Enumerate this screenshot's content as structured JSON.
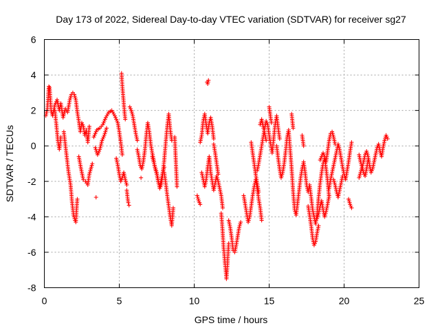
{
  "chart_data": {
    "type": "scatter",
    "title": "Day 173 of 2022, Sidereal Day-to-day VTEC variation (SDTVAR) for receiver sg27",
    "xlabel": "GPS time / hours",
    "ylabel": "SDTVAR / TECUs",
    "xlim": [
      0,
      25
    ],
    "ylim": [
      -8,
      6
    ],
    "xticks": [
      0,
      5,
      10,
      15,
      20,
      25
    ],
    "yticks": [
      -8,
      -6,
      -4,
      -2,
      0,
      2,
      4,
      6
    ],
    "grid": true,
    "marker": "+",
    "series": [
      {
        "name": "SDTVAR",
        "color": "#ff0000",
        "segments": [
          {
            "x": [
              0.1,
              0.2,
              0.3,
              0.35,
              0.45,
              0.55,
              0.7,
              0.85,
              1.0,
              1.1,
              1.25,
              1.4,
              1.55,
              1.7,
              1.8,
              1.9,
              2.0,
              2.1,
              2.2,
              2.3,
              2.4,
              2.5,
              2.6,
              2.7,
              2.8,
              2.9,
              3.0
            ],
            "y": [
              1.7,
              2.1,
              3.35,
              3.3,
              2.0,
              1.7,
              2.3,
              2.6,
              2.0,
              2.4,
              1.6,
              2.1,
              1.9,
              2.6,
              2.9,
              3.0,
              2.9,
              2.6,
              1.9,
              1.4,
              0.8,
              1.3,
              1.1,
              0.6,
              0.9,
              0.2,
              1.1
            ]
          },
          {
            "x": [
              0.7,
              0.8,
              0.9,
              1.0,
              1.1
            ],
            "y": [
              2.0,
              1.2,
              0.3,
              -0.2,
              0.5
            ]
          },
          {
            "x": [
              1.3,
              1.45,
              1.6,
              1.75,
              1.85,
              1.95,
              2.05,
              2.1,
              2.15,
              2.2
            ],
            "y": [
              0.8,
              -0.3,
              -1.4,
              -2.2,
              -3.2,
              -3.9,
              -4.2,
              -4.3,
              -3.6,
              -3.0
            ]
          },
          {
            "x": [
              2.3,
              2.45,
              2.6,
              2.75,
              2.9,
              3.0,
              3.1,
              3.2
            ],
            "y": [
              -0.6,
              -1.3,
              -1.9,
              -2.0,
              -2.2,
              -1.6,
              -1.3,
              -1.0
            ]
          },
          {
            "x": [
              3.3,
              3.5,
              3.7,
              3.9,
              4.1,
              4.3,
              4.5,
              4.7,
              4.9,
              5.0,
              5.1,
              5.2
            ],
            "y": [
              0.5,
              0.9,
              1.0,
              1.2,
              1.6,
              1.9,
              2.0,
              1.7,
              1.3,
              0.8,
              0.2,
              -0.5
            ]
          },
          {
            "x": [
              3.4,
              3.55,
              3.7,
              3.85,
              4.0,
              4.15
            ],
            "y": [
              -0.1,
              -0.5,
              -0.2,
              0.3,
              0.6,
              1.0
            ]
          },
          {
            "x": [
              3.45
            ],
            "y": [
              -2.9
            ]
          },
          {
            "x": [
              5.15,
              5.2,
              5.25,
              5.3,
              5.35,
              5.4
            ],
            "y": [
              4.1,
              3.4,
              2.9,
              2.4,
              1.9,
              1.5
            ]
          },
          {
            "x": [
              4.8,
              4.9,
              5.0,
              5.1,
              5.2,
              5.3,
              5.4,
              5.5
            ],
            "y": [
              -0.7,
              -1.1,
              -1.6,
              -2.0,
              -1.8,
              -1.5,
              -1.9,
              -2.2
            ]
          },
          {
            "x": [
              5.5,
              5.55,
              5.6,
              5.65
            ],
            "y": [
              -2.5,
              -2.9,
              -3.2,
              -3.35
            ]
          },
          {
            "x": [
              5.7,
              5.8,
              5.9,
              6.0,
              6.1,
              6.2
            ],
            "y": [
              2.2,
              2.0,
              1.7,
              1.2,
              0.7,
              0.3
            ]
          },
          {
            "x": [
              6.2,
              6.3,
              6.4,
              6.5,
              6.6,
              6.7,
              6.8,
              6.9,
              7.0,
              7.1,
              7.2,
              7.3,
              7.4,
              7.5,
              7.6,
              7.7,
              7.8,
              7.9,
              8.0
            ],
            "y": [
              -0.2,
              -0.6,
              -1.1,
              -1.3,
              -0.9,
              -0.3,
              0.6,
              1.3,
              0.8,
              0.1,
              -0.4,
              -0.8,
              -1.3,
              -1.6,
              -2.0,
              -2.3,
              -1.9,
              -1.5,
              -1.2
            ]
          },
          {
            "x": [
              6.45
            ],
            "y": [
              -1.8
            ]
          },
          {
            "x": [
              7.2,
              7.35,
              7.5,
              7.6,
              7.7,
              7.8,
              7.9,
              8.0,
              8.1,
              8.2,
              8.3,
              8.4,
              8.5
            ],
            "y": [
              -0.6,
              -1.1,
              -1.5,
              -2.0,
              -2.4,
              -2.2,
              -1.6,
              -0.8,
              0.2,
              1.1,
              1.8,
              0.9,
              0.3
            ]
          },
          {
            "x": [
              8.0,
              8.1,
              8.2,
              8.3,
              8.4,
              8.5,
              8.6
            ],
            "y": [
              -1.5,
              -2.1,
              -2.8,
              -3.4,
              -4.0,
              -4.5,
              -3.5
            ]
          },
          {
            "x": [
              8.7,
              8.85
            ],
            "y": [
              0.5,
              -2.3
            ]
          },
          {
            "x": [
              10.2,
              10.3,
              10.4
            ],
            "y": [
              -2.8,
              -3.1,
              -3.3
            ]
          },
          {
            "x": [
              10.4,
              10.5,
              10.6,
              10.7,
              10.8,
              10.9,
              11.0,
              11.1,
              11.2,
              11.3
            ],
            "y": [
              0.2,
              0.6,
              1.4,
              1.8,
              1.2,
              0.7,
              1.3,
              1.6,
              1.1,
              0.4
            ]
          },
          {
            "x": [
              10.85,
              10.9,
              10.95
            ],
            "y": [
              3.6,
              3.5,
              3.7
            ]
          },
          {
            "x": [
              10.5,
              10.6,
              10.7,
              10.8,
              10.9,
              11.0,
              11.1,
              11.2,
              11.3,
              11.4,
              11.5,
              11.6,
              11.7,
              11.8,
              11.9
            ],
            "y": [
              -1.5,
              -1.9,
              -2.3,
              -1.9,
              -1.2,
              -0.6,
              -1.5,
              -2.0,
              -2.5,
              -2.1,
              -1.7,
              -2.0,
              -2.4,
              -2.8,
              -3.5
            ]
          },
          {
            "x": [
              11.3,
              11.4,
              11.5,
              11.6
            ],
            "y": [
              0.1,
              -0.4,
              -1.0,
              -1.6
            ]
          },
          {
            "x": [
              11.8,
              11.85,
              11.9,
              11.95,
              12.0,
              12.05,
              12.1,
              12.15,
              12.2,
              12.25,
              12.3
            ],
            "y": [
              -3.8,
              -4.3,
              -4.9,
              -5.6,
              -6.1,
              -6.6,
              -7.0,
              -7.5,
              -6.9,
              -6.2,
              -5.5
            ]
          },
          {
            "x": [
              12.3,
              12.4,
              12.5,
              12.6,
              12.7,
              12.8,
              12.9,
              13.0,
              13.1
            ],
            "y": [
              -4.2,
              -4.6,
              -5.2,
              -5.9,
              -6.0,
              -5.6,
              -5.1,
              -4.6,
              -4.3
            ]
          },
          {
            "x": [
              13.3,
              13.4,
              13.5,
              13.6,
              13.7,
              13.8,
              13.9,
              14.0,
              14.1,
              14.2,
              14.3,
              14.4,
              14.5
            ],
            "y": [
              -2.8,
              -3.3,
              -3.8,
              -4.3,
              -4.0,
              -3.4,
              -2.8,
              -2.3,
              -1.9,
              -2.4,
              -3.0,
              -3.5,
              -4.2
            ]
          },
          {
            "x": [
              13.8,
              13.9,
              14.0,
              14.1,
              14.2,
              14.3
            ],
            "y": [
              0.2,
              -0.4,
              -1.0,
              -1.6,
              -2.1,
              -2.6
            ]
          },
          {
            "x": [
              14.2,
              14.3,
              14.4,
              14.5,
              14.6,
              14.7,
              14.8,
              14.9,
              15.0,
              15.1,
              15.2,
              15.3,
              15.4,
              15.5,
              15.6,
              15.7
            ],
            "y": [
              -1.4,
              -1.0,
              -0.5,
              0.0,
              0.5,
              1.0,
              1.4,
              1.2,
              0.6,
              0.1,
              -0.4,
              0.4,
              1.2,
              1.7,
              1.0,
              0.4
            ]
          },
          {
            "x": [
              14.4,
              14.5,
              14.6,
              14.7,
              14.8
            ],
            "y": [
              1.2,
              1.5,
              1.1,
              0.7,
              0.3
            ]
          },
          {
            "x": [
              15.0,
              15.05,
              15.1,
              15.15
            ],
            "y": [
              2.2,
              1.9,
              1.6,
              1.3
            ]
          },
          {
            "x": [
              15.5,
              15.6,
              15.7,
              15.8,
              15.9,
              16.0,
              16.1,
              16.2,
              16.3,
              16.4,
              16.5,
              16.6,
              16.7,
              16.8,
              16.9,
              17.0,
              17.1,
              17.2,
              17.3,
              17.4,
              17.5,
              17.6,
              17.7,
              17.8,
              17.9,
              18.0,
              18.1,
              18.2,
              18.3,
              18.4,
              18.5,
              18.6,
              18.7,
              18.8,
              18.9,
              19.0
            ],
            "y": [
              0.0,
              -0.7,
              -1.3,
              -1.8,
              -1.5,
              -1.0,
              -0.3,
              0.5,
              0.9,
              -0.2,
              -1.3,
              -2.6,
              -3.6,
              -3.9,
              -3.2,
              -2.5,
              -1.8,
              -1.3,
              -0.9,
              -1.5,
              -2.2,
              -2.6,
              -2.2,
              -2.9,
              -3.6,
              -4.0,
              -4.4,
              -3.8,
              -2.9,
              -2.1,
              -1.5,
              -1.0,
              -0.7,
              -1.3,
              -2.0,
              -2.9
            ]
          },
          {
            "x": [
              16.5,
              16.55,
              16.6
            ],
            "y": [
              1.8,
              1.4,
              1.0
            ]
          },
          {
            "x": [
              17.2,
              17.25,
              17.3
            ],
            "y": [
              0.6,
              0.3,
              0.0
            ]
          },
          {
            "x": [
              17.6,
              17.7,
              17.8,
              17.9,
              18.0,
              18.1,
              18.2,
              18.3
            ],
            "y": [
              -3.4,
              -3.9,
              -4.5,
              -5.2,
              -5.6,
              -5.4,
              -4.9,
              -4.5
            ]
          },
          {
            "x": [
              18.2,
              18.3,
              18.4,
              18.5,
              18.6,
              18.7,
              18.8,
              18.9,
              19.0
            ],
            "y": [
              -4.1,
              -3.8,
              -3.4,
              -3.1,
              -3.6,
              -4.0,
              -3.7,
              -3.3,
              -2.8
            ]
          },
          {
            "x": [
              18.4,
              18.5,
              18.6,
              18.7,
              18.8,
              18.9,
              19.0,
              19.1,
              19.2,
              19.3,
              19.4
            ],
            "y": [
              -0.8,
              -0.6,
              -0.4,
              -0.6,
              -0.9,
              -0.3,
              0.3,
              0.7,
              0.8,
              0.5,
              0.1
            ]
          },
          {
            "x": [
              19.0,
              19.1,
              19.2,
              19.3,
              19.4,
              19.5,
              19.6,
              19.7,
              19.8,
              19.9,
              20.0,
              20.1,
              20.2,
              20.3,
              20.4,
              20.5
            ],
            "y": [
              -2.4,
              -1.9,
              -1.5,
              -1.1,
              -0.7,
              -0.3,
              0.1,
              -0.2,
              -0.7,
              -1.2,
              -1.6,
              -1.9,
              -1.4,
              -0.9,
              -0.3,
              0.2
            ]
          },
          {
            "x": [
              19.3,
              19.4,
              19.5,
              19.6,
              19.7,
              19.8,
              19.9
            ],
            "y": [
              -1.9,
              -2.2,
              -2.6,
              -2.9,
              -2.5,
              -2.1,
              -1.7
            ]
          },
          {
            "x": [
              20.3,
              20.4,
              20.5
            ],
            "y": [
              -3.0,
              -3.3,
              -3.5
            ]
          },
          {
            "x": [
              21.0,
              21.1,
              21.2,
              21.3,
              21.4,
              21.5,
              21.6,
              21.7,
              21.8,
              21.9,
              22.0,
              22.1,
              22.2,
              22.3,
              22.4,
              22.5,
              22.6,
              22.7,
              22.8,
              22.9
            ],
            "y": [
              -1.8,
              -1.5,
              -1.2,
              -0.9,
              -0.5,
              -0.3,
              -0.6,
              -1.1,
              -1.5,
              -1.3,
              -0.9,
              -0.5,
              -0.1,
              0.1,
              -0.3,
              -0.6,
              -0.1,
              0.3,
              0.6,
              0.4
            ]
          },
          {
            "x": [
              21.0,
              21.1,
              21.2,
              21.3,
              21.4,
              21.5,
              21.6
            ],
            "y": [
              -0.5,
              -0.9,
              -1.2,
              -1.5,
              -1.7,
              -1.3,
              -0.8
            ]
          }
        ]
      }
    ]
  }
}
